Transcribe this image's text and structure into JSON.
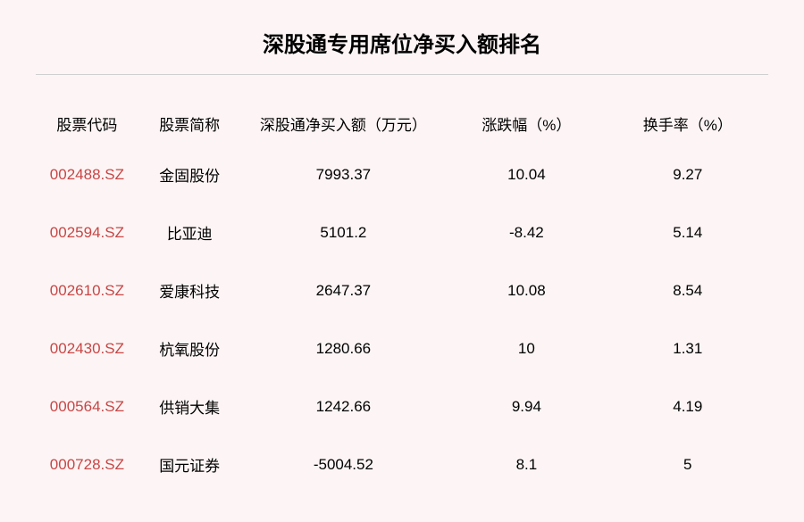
{
  "title": "深股通专用席位净买入额排名",
  "table": {
    "type": "table",
    "background_color": "#fdf5f5",
    "code_color": "#c84545",
    "text_color": "#000000",
    "divider_color": "#d0d0d0",
    "title_fontsize": 24,
    "header_fontsize": 17,
    "cell_fontsize": 17,
    "columns": [
      "股票代码",
      "股票简称",
      "深股通净买入额（万元）",
      "涨跌幅（%）",
      "换手率（%）"
    ],
    "column_widths": [
      "14%",
      "14%",
      "28%",
      "22%",
      "22%"
    ],
    "rows": [
      {
        "code": "002488.SZ",
        "name": "金固股份",
        "net_buy": "7993.37",
        "change": "10.04",
        "turnover": "9.27"
      },
      {
        "code": "002594.SZ",
        "name": "比亚迪",
        "net_buy": "5101.2",
        "change": "-8.42",
        "turnover": "5.14"
      },
      {
        "code": "002610.SZ",
        "name": "爱康科技",
        "net_buy": "2647.37",
        "change": "10.08",
        "turnover": "8.54"
      },
      {
        "code": "002430.SZ",
        "name": "杭氧股份",
        "net_buy": "1280.66",
        "change": "10",
        "turnover": "1.31"
      },
      {
        "code": "000564.SZ",
        "name": "供销大集",
        "net_buy": "1242.66",
        "change": "9.94",
        "turnover": "4.19"
      },
      {
        "code": "000728.SZ",
        "name": "国元证券",
        "net_buy": "-5004.52",
        "change": "8.1",
        "turnover": "5"
      }
    ]
  }
}
